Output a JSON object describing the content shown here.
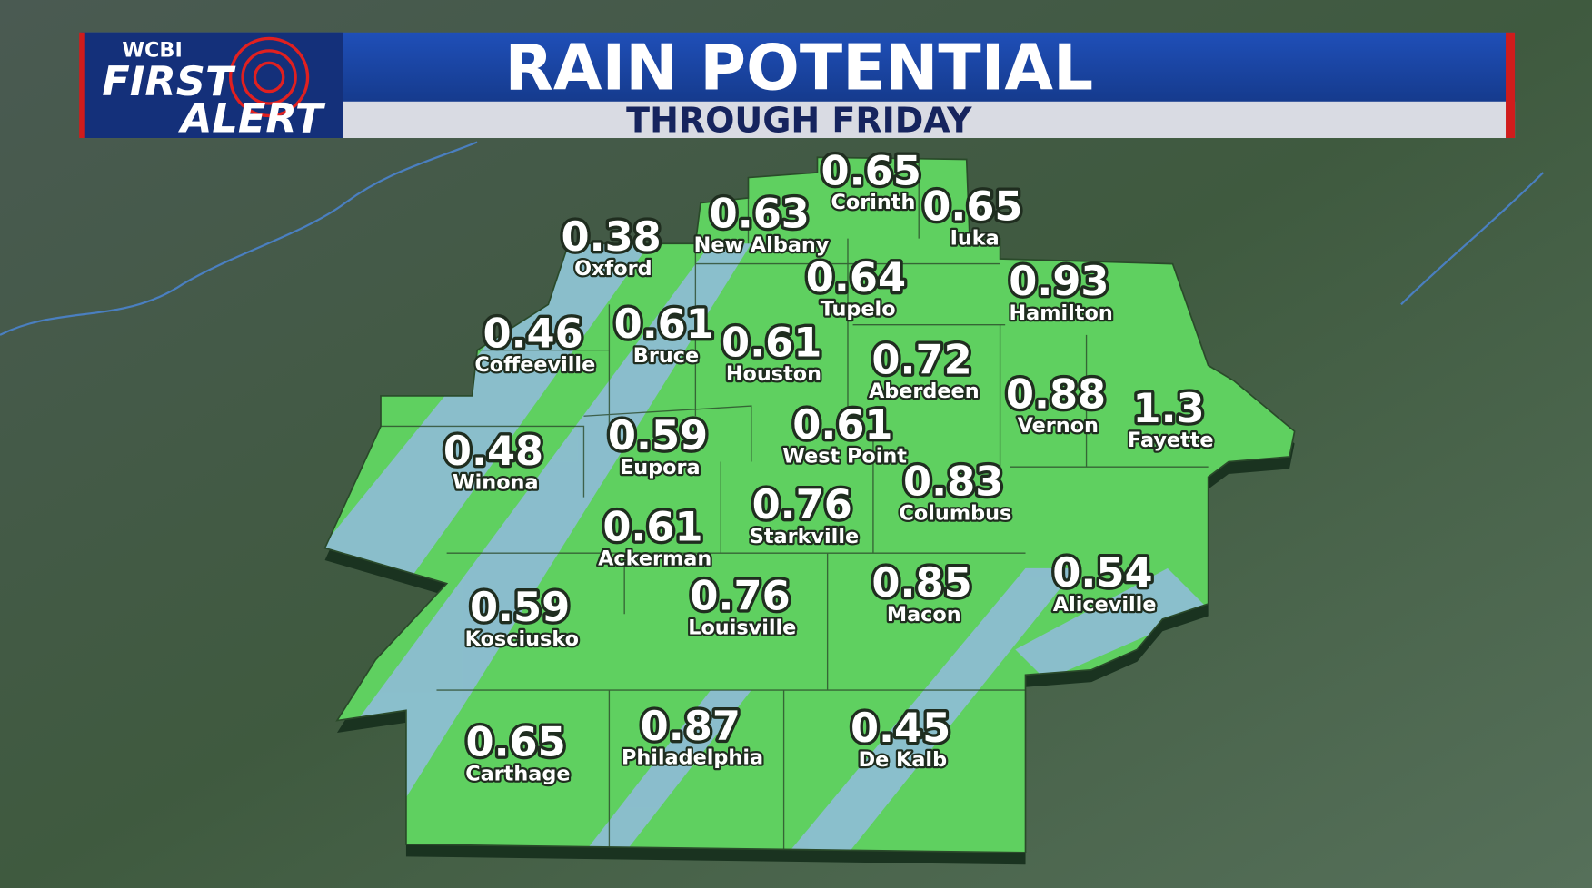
{
  "header": {
    "logo": {
      "station": "WCBI",
      "line1": "FIRST",
      "line2": "ALERT"
    },
    "title": "RAIN POTENTIAL",
    "subtitle": "THROUGH FRIDAY"
  },
  "cities": [
    {
      "name": "Corinth",
      "value": 0.65
    },
    {
      "name": "Iuka",
      "value": 0.65
    },
    {
      "name": "New Albany",
      "value": 0.63
    },
    {
      "name": "Oxford",
      "value": 0.38
    },
    {
      "name": "Tupelo",
      "value": 0.64
    },
    {
      "name": "Hamilton",
      "value": 0.93
    },
    {
      "name": "Coffeeville",
      "value": 0.46
    },
    {
      "name": "Bruce",
      "value": 0.61
    },
    {
      "name": "Houston",
      "value": 0.61
    },
    {
      "name": "Aberdeen",
      "value": 0.72
    },
    {
      "name": "Vernon",
      "value": 0.88
    },
    {
      "name": "Fayette",
      "value": 1.3
    },
    {
      "name": "West Point",
      "value": 0.61
    },
    {
      "name": "Winona",
      "value": 0.48
    },
    {
      "name": "Eupora",
      "value": 0.59
    },
    {
      "name": "Columbus",
      "value": 0.83
    },
    {
      "name": "Starkville",
      "value": 0.76
    },
    {
      "name": "Ackerman",
      "value": 0.61
    },
    {
      "name": "Aliceville",
      "value": 0.54
    },
    {
      "name": "Macon",
      "value": 0.85
    },
    {
      "name": "Louisville",
      "value": 0.76
    },
    {
      "name": "Kosciusko",
      "value": 0.59
    },
    {
      "name": "Philadelphia",
      "value": 0.87
    },
    {
      "name": "Carthage",
      "value": 0.65
    },
    {
      "name": "De Kalb",
      "value": 0.45
    }
  ]
}
